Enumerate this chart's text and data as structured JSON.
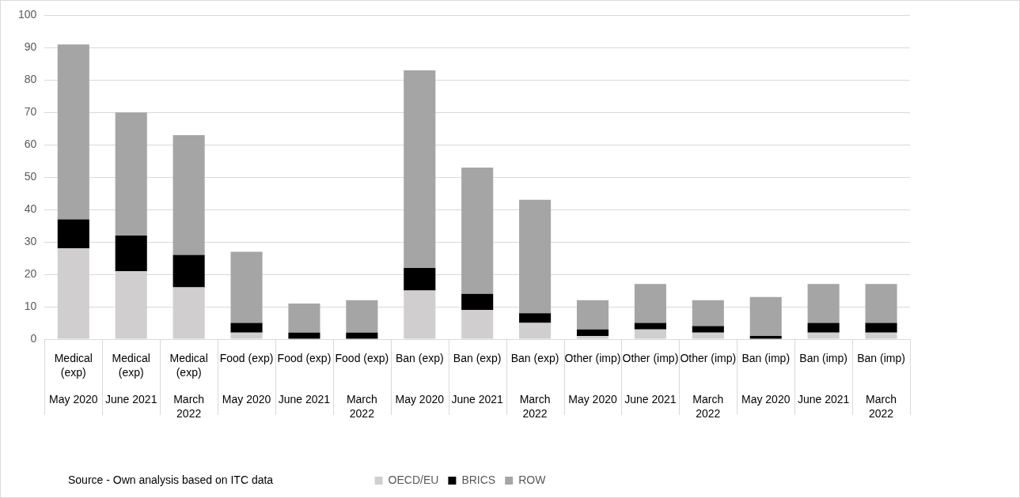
{
  "chart_data": {
    "type": "bar",
    "stacked": true,
    "categories": [
      "Medical (exp)\nMay 2020",
      "Medical (exp)\nJune 2021",
      "Medical (exp)\nMarch 2022",
      "Food (exp)\nMay 2020",
      "Food (exp)\nJune 2021",
      "Food (exp)\nMarch 2022",
      "Ban (exp)\nMay 2020",
      "Ban (exp)\nJune 2021",
      "Ban (exp)\nMarch 2022",
      "Other (imp)\nMay 2020",
      "Other (imp)\nJune 2021",
      "Other (imp)\nMarch 2022",
      "Ban (imp)\nMay 2020",
      "Ban (imp)\nJune 2021",
      "Ban (imp)\nMarch 2022"
    ],
    "series": [
      {
        "name": "OECD/EU",
        "color": "#d0cece",
        "values": [
          28,
          21,
          16,
          2,
          0,
          0,
          15,
          9,
          5,
          1,
          3,
          2,
          0,
          2,
          2
        ]
      },
      {
        "name": "BRICS",
        "color": "#000000",
        "values": [
          9,
          11,
          10,
          3,
          2,
          2,
          7,
          5,
          3,
          2,
          2,
          2,
          1,
          3,
          3
        ]
      },
      {
        "name": "ROW",
        "color": "#a5a5a5",
        "values": [
          54,
          38,
          37,
          22,
          9,
          10,
          61,
          39,
          35,
          9,
          12,
          8,
          12,
          12,
          12
        ]
      }
    ],
    "ylim": [
      0,
      100
    ],
    "yticks": [
      0,
      10,
      20,
      30,
      40,
      50,
      60,
      70,
      80,
      90,
      100
    ],
    "grid": "y",
    "legend": "bottom",
    "annotations": [
      "Source - Own analysis based on ITC data"
    ]
  }
}
